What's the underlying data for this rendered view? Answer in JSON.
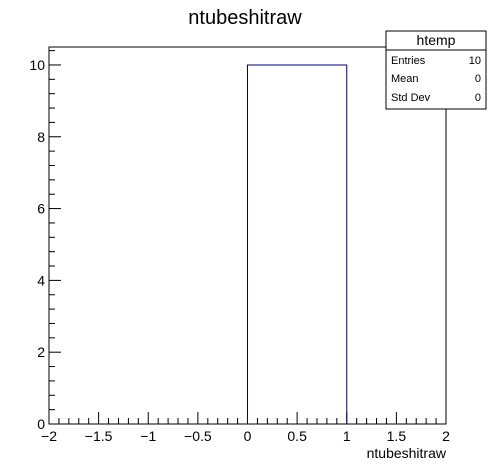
{
  "chart_data": {
    "type": "bar",
    "title": "ntubeshitraw",
    "xlabel": "ntubeshitraw",
    "ylabel": "",
    "xlim": [
      -2,
      2
    ],
    "ylim": [
      0,
      10.5
    ],
    "x_ticks": [
      -2,
      -1.5,
      -1,
      -0.5,
      0,
      0.5,
      1,
      1.5,
      2
    ],
    "x_tick_labels": [
      "−2",
      "−1.5",
      "−1",
      "−0.5",
      "0",
      "0.5",
      "1",
      "1.5",
      "2"
    ],
    "y_ticks": [
      0,
      2,
      4,
      6,
      8,
      10
    ],
    "y_tick_labels": [
      "0",
      "2",
      "4",
      "6",
      "8",
      "10"
    ],
    "bins": [
      {
        "low": 0,
        "high": 1,
        "value": 10
      }
    ],
    "line_color": "#000080",
    "grid": false,
    "stats_box": {
      "name": "htemp",
      "rows": [
        {
          "label": "Entries",
          "value": "10"
        },
        {
          "label": "Mean",
          "value": "0"
        },
        {
          "label": "Std Dev",
          "value": "0"
        }
      ]
    }
  }
}
